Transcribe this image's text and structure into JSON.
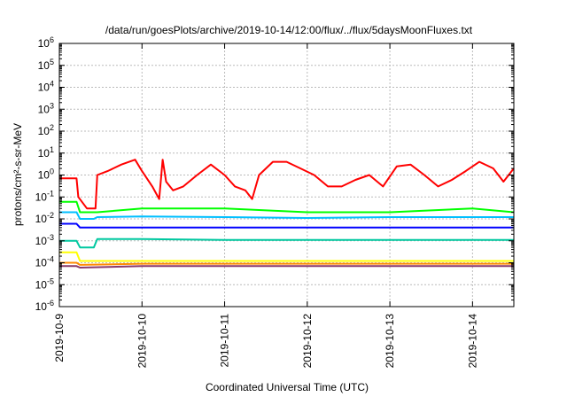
{
  "chart_data": {
    "type": "line",
    "title": "/data/run/goesPlots/archive/2019-10-14/12:00/flux/../flux/5daysMoonFluxes.txt",
    "xlabel": "Coordinated Universal Time (UTC)",
    "ylabel": "protons/cm²-s-sr-MeV",
    "y_scale": "log",
    "ylim": [
      1e-06,
      1000000
    ],
    "xlim": [
      "2019-10-09 00:00",
      "2019-10-14 12:00"
    ],
    "grid": true,
    "legend": "none",
    "x_ticks": [
      "2019-10-9",
      "2019-10-10",
      "2019-10-11",
      "2019-10-12",
      "2019-10-13",
      "2019-10-14"
    ],
    "y_ticks": [
      {
        "base": "10",
        "exp": "-6"
      },
      {
        "base": "10",
        "exp": "-5"
      },
      {
        "base": "10",
        "exp": "-4"
      },
      {
        "base": "10",
        "exp": "-3"
      },
      {
        "base": "10",
        "exp": "-2"
      },
      {
        "base": "10",
        "exp": "-1"
      },
      {
        "base": "10",
        "exp": "0"
      },
      {
        "base": "10",
        "exp": "1"
      },
      {
        "base": "10",
        "exp": "2"
      },
      {
        "base": "10",
        "exp": "3"
      },
      {
        "base": "10",
        "exp": "4"
      },
      {
        "base": "10",
        "exp": "5"
      },
      {
        "base": "10",
        "exp": "6"
      }
    ],
    "series": [
      {
        "color": "#ff0000",
        "x": [
          "2019-10-09 00:00",
          "2019-10-09 05:00",
          "2019-10-09 05:30",
          "2019-10-09 08:00",
          "2019-10-09 09:00",
          "2019-10-09 10:30",
          "2019-10-09 11:00",
          "2019-10-09 14:00",
          "2019-10-09 18:00",
          "2019-10-09 22:00",
          "2019-10-10 00:00",
          "2019-10-10 03:00",
          "2019-10-10 05:00",
          "2019-10-10 06:00",
          "2019-10-10 07:00",
          "2019-10-10 09:00",
          "2019-10-10 12:00",
          "2019-10-10 16:00",
          "2019-10-10 20:00",
          "2019-10-11 00:00",
          "2019-10-11 03:00",
          "2019-10-11 06:00",
          "2019-10-11 08:00",
          "2019-10-11 10:00",
          "2019-10-11 14:00",
          "2019-10-11 18:00",
          "2019-10-11 22:00",
          "2019-10-12 02:00",
          "2019-10-12 06:00",
          "2019-10-12 10:00",
          "2019-10-12 14:00",
          "2019-10-12 18:00",
          "2019-10-12 22:00",
          "2019-10-13 02:00",
          "2019-10-13 06:00",
          "2019-10-13 10:00",
          "2019-10-13 14:00",
          "2019-10-13 18:00",
          "2019-10-13 22:00",
          "2019-10-14 02:00",
          "2019-10-14 06:00",
          "2019-10-14 09:00",
          "2019-10-14 12:00"
        ],
        "y": [
          0.7,
          0.7,
          0.1,
          0.03,
          0.03,
          0.03,
          1.0,
          1.5,
          3.0,
          5.0,
          1.5,
          0.3,
          0.08,
          5.0,
          0.5,
          0.2,
          0.3,
          1.0,
          3.0,
          1.0,
          0.3,
          0.2,
          0.08,
          1.0,
          4.0,
          4.0,
          2.0,
          1.0,
          0.3,
          0.3,
          0.6,
          1.0,
          0.3,
          2.5,
          3.0,
          1.0,
          0.3,
          0.6,
          1.5,
          4.0,
          2.0,
          0.5,
          2.0
        ]
      },
      {
        "color": "#00ff00",
        "x": [
          "2019-10-09 00:00",
          "2019-10-09 05:00",
          "2019-10-09 06:00",
          "2019-10-09 10:00",
          "2019-10-09 11:00",
          "2019-10-10 00:00",
          "2019-10-11 00:00",
          "2019-10-12 00:00",
          "2019-10-13 00:00",
          "2019-10-14 00:00",
          "2019-10-14 12:00"
        ],
        "y": [
          0.06,
          0.06,
          0.02,
          0.02,
          0.02,
          0.03,
          0.03,
          0.02,
          0.02,
          0.03,
          0.02
        ]
      },
      {
        "color": "#00bfff",
        "x": [
          "2019-10-09 00:00",
          "2019-10-09 05:00",
          "2019-10-09 06:00",
          "2019-10-09 10:00",
          "2019-10-09 11:00",
          "2019-10-10 00:00",
          "2019-10-11 00:00",
          "2019-10-12 00:00",
          "2019-10-13 00:00",
          "2019-10-14 00:00",
          "2019-10-14 12:00"
        ],
        "y": [
          0.02,
          0.02,
          0.01,
          0.01,
          0.012,
          0.013,
          0.012,
          0.011,
          0.012,
          0.012,
          0.012
        ]
      },
      {
        "color": "#0000ff",
        "x": [
          "2019-10-09 00:00",
          "2019-10-09 05:00",
          "2019-10-09 06:00",
          "2019-10-09 10:00",
          "2019-10-09 11:00",
          "2019-10-10 00:00",
          "2019-10-11 00:00",
          "2019-10-12 00:00",
          "2019-10-13 00:00",
          "2019-10-14 00:00",
          "2019-10-14 12:00"
        ],
        "y": [
          0.006,
          0.006,
          0.004,
          0.004,
          0.004,
          0.004,
          0.004,
          0.004,
          0.004,
          0.004,
          0.004
        ]
      },
      {
        "color": "#00c8a0",
        "x": [
          "2019-10-09 00:00",
          "2019-10-09 05:00",
          "2019-10-09 06:00",
          "2019-10-09 10:00",
          "2019-10-09 11:00",
          "2019-10-10 00:00",
          "2019-10-11 00:00",
          "2019-10-12 00:00",
          "2019-10-13 00:00",
          "2019-10-14 00:00",
          "2019-10-14 12:00"
        ],
        "y": [
          0.001,
          0.001,
          0.0005,
          0.0005,
          0.0012,
          0.0012,
          0.0011,
          0.0011,
          0.0011,
          0.0011,
          0.0011
        ]
      },
      {
        "color": "#ffff00",
        "x": [
          "2019-10-09 00:00",
          "2019-10-09 05:00",
          "2019-10-09 06:00",
          "2019-10-09 10:00",
          "2019-10-10 00:00",
          "2019-10-11 00:00",
          "2019-10-12 00:00",
          "2019-10-13 00:00",
          "2019-10-14 00:00",
          "2019-10-14 12:00"
        ],
        "y": [
          0.0003,
          0.0003,
          0.00012,
          0.00012,
          0.00012,
          0.00012,
          0.00012,
          0.00012,
          0.00012,
          0.00012
        ]
      },
      {
        "color": "#ff8c00",
        "x": [
          "2019-10-09 00:00",
          "2019-10-09 05:00",
          "2019-10-09 06:00",
          "2019-10-10 00:00",
          "2019-10-11 00:00",
          "2019-10-12 00:00",
          "2019-10-13 00:00",
          "2019-10-14 00:00",
          "2019-10-14 12:00"
        ],
        "y": [
          0.0001,
          0.0001,
          8e-05,
          9e-05,
          9e-05,
          9e-05,
          9e-05,
          9e-05,
          9e-05
        ]
      },
      {
        "color": "#8b3a6a",
        "x": [
          "2019-10-09 00:00",
          "2019-10-09 05:00",
          "2019-10-09 06:00",
          "2019-10-10 00:00",
          "2019-10-11 00:00",
          "2019-10-12 00:00",
          "2019-10-13 00:00",
          "2019-10-14 00:00",
          "2019-10-14 12:00"
        ],
        "y": [
          7e-05,
          7e-05,
          6e-05,
          7e-05,
          7e-05,
          7e-05,
          7e-05,
          7e-05,
          7e-05
        ]
      }
    ]
  }
}
